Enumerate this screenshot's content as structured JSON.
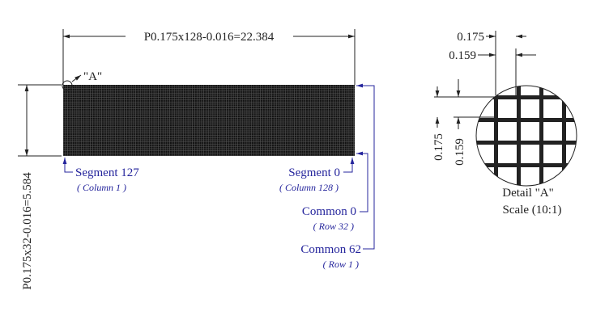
{
  "panel": {
    "width_dimension": "P0.175x128-0.016=22.384",
    "height_dimension": "P0.175x32-0.016=5.584",
    "detail_marker": "\"A\""
  },
  "labels": [
    {
      "name": "Segment 127",
      "sub": "( Column 1 )"
    },
    {
      "name": "Segment 0",
      "sub": "( Column 128 )"
    },
    {
      "name": "Common 0",
      "sub": "( Row 32 )"
    },
    {
      "name": "Common 62",
      "sub": "( Row 1 )"
    }
  ],
  "detail": {
    "pitch_x": "0.175",
    "dot_x": "0.159",
    "pitch_y": "0.175",
    "dot_y": "0.159",
    "title": "Detail \"A\"",
    "scale": "Scale (10:1)"
  }
}
